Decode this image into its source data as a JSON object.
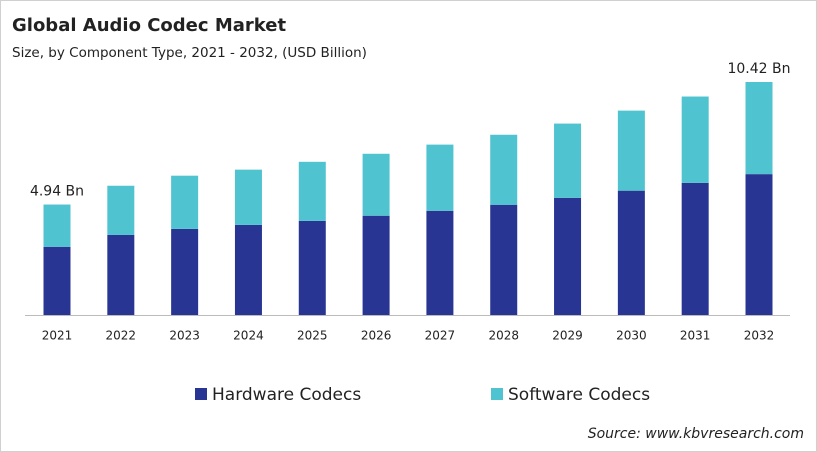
{
  "chart_data": {
    "type": "stacked-bar",
    "title": "Global Audio Codec Market",
    "subtitle": "Size, by Component Type, 2021 - 2032, (USD Billion)",
    "categories": [
      "2021",
      "2022",
      "2023",
      "2024",
      "2025",
      "2026",
      "2027",
      "2028",
      "2029",
      "2030",
      "2031",
      "2032"
    ],
    "series": [
      {
        "name": "Hardware Codecs",
        "color": "#283593",
        "values": [
          3.05,
          3.58,
          3.85,
          4.03,
          4.21,
          4.44,
          4.66,
          4.93,
          5.24,
          5.56,
          5.91,
          6.3
        ]
      },
      {
        "name": "Software Codecs",
        "color": "#4fc3cf",
        "values": [
          1.89,
          2.2,
          2.38,
          2.47,
          2.64,
          2.77,
          2.96,
          3.13,
          3.32,
          3.58,
          3.86,
          4.12
        ]
      }
    ],
    "annotations": [
      {
        "category": "2021",
        "value": 4.94,
        "label": "4.94 Bn"
      },
      {
        "category": "2032",
        "value": 10.42,
        "label": "10.42 Bn"
      }
    ],
    "source": "Source: www.kbvresearch.com"
  }
}
